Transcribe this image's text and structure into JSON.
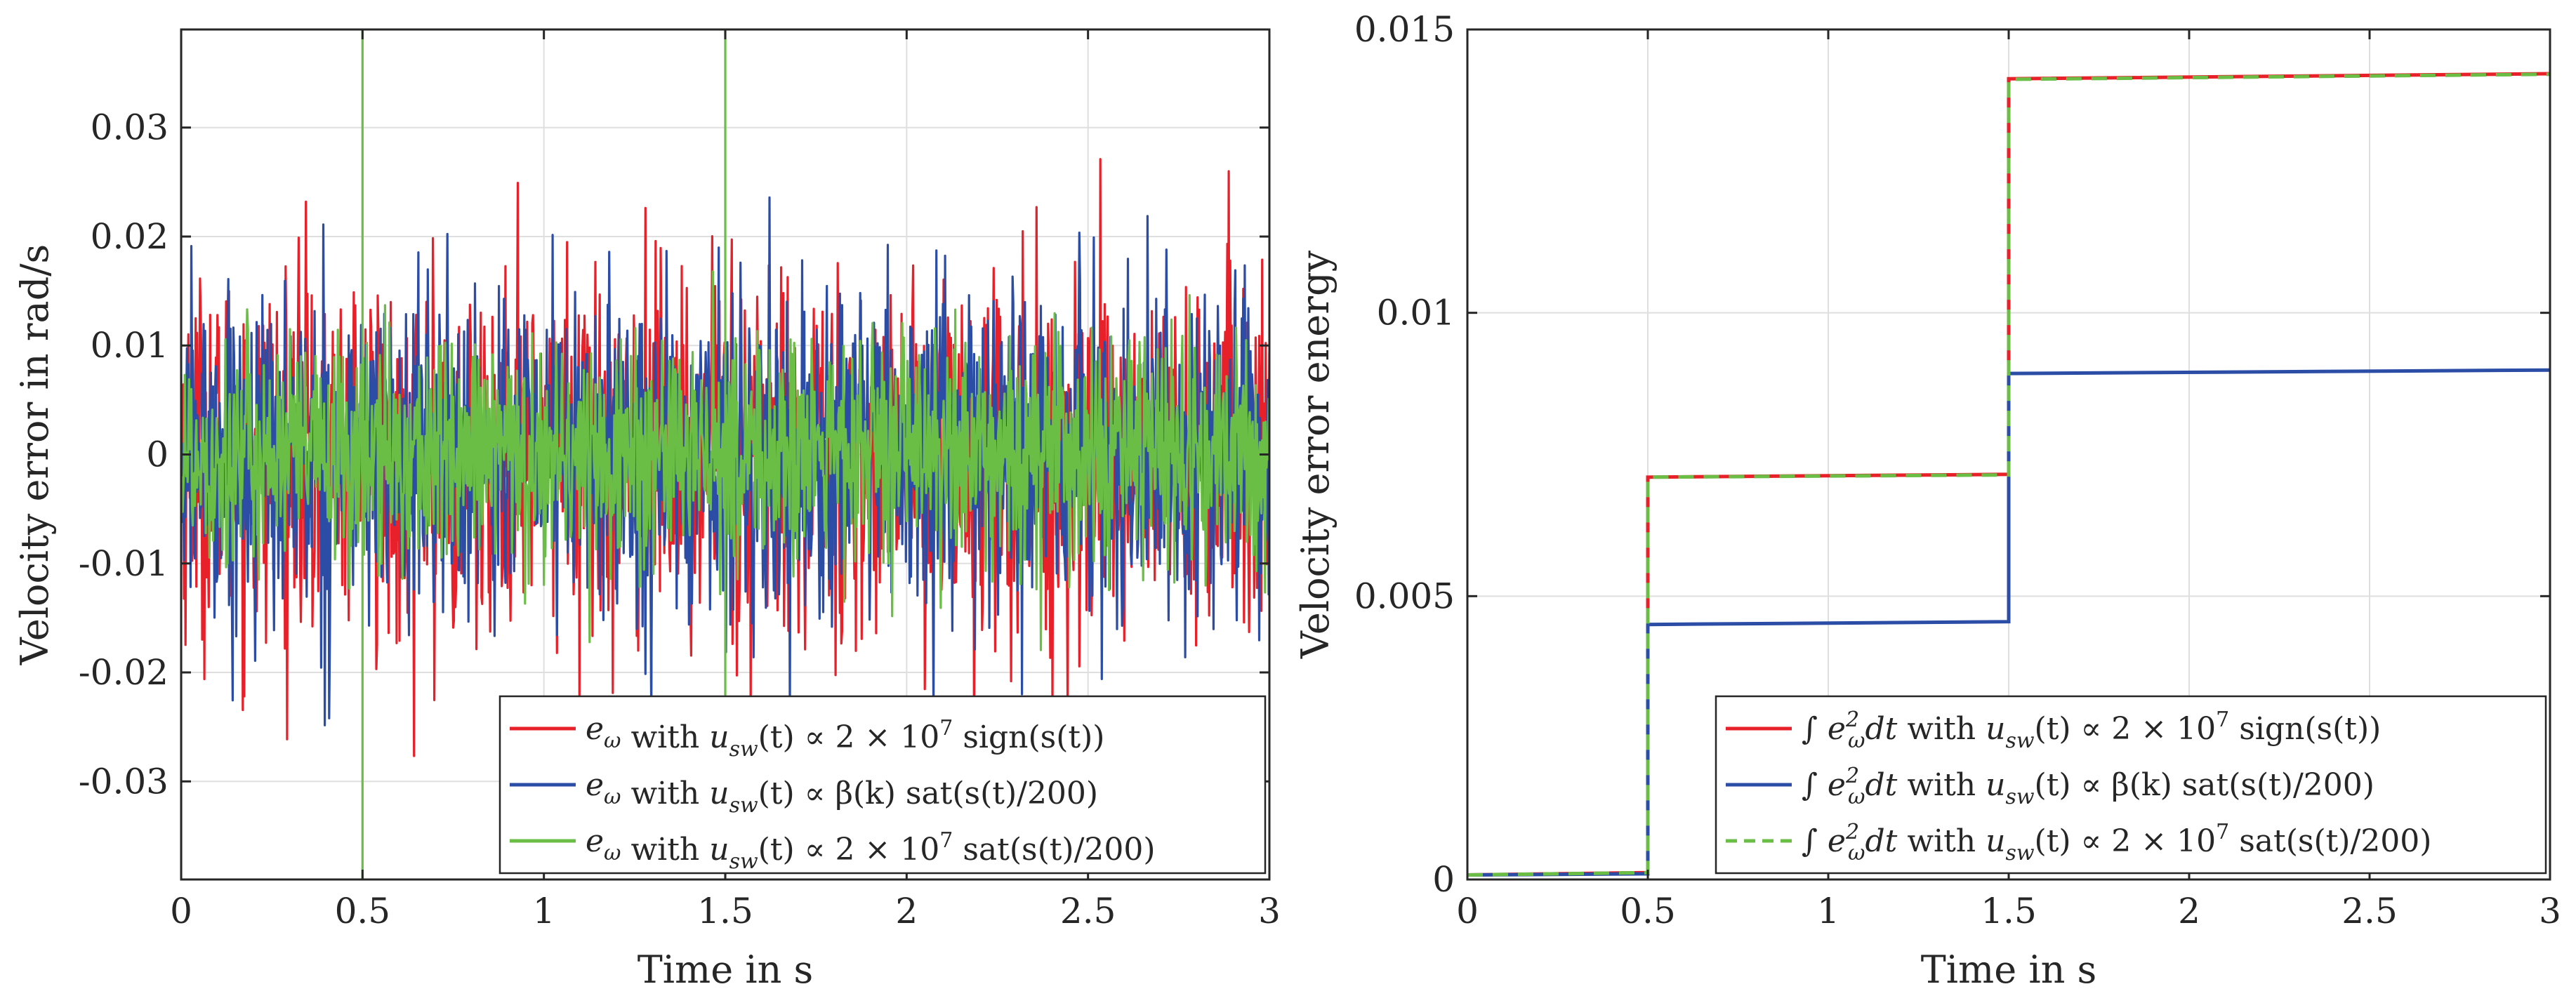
{
  "colors": {
    "red": "#e8202a",
    "blue": "#2b4da6",
    "green": "#6abe45",
    "axis": "#262626",
    "grid": "#dfdfdf"
  },
  "chart_data": [
    {
      "type": "line",
      "xlabel": "Time in s",
      "ylabel": "Velocity error in rad/s",
      "xlim": [
        0,
        3
      ],
      "ylim": [
        -0.039,
        0.039
      ],
      "grid": true,
      "x_ticks": [
        0,
        0.5,
        1,
        1.5,
        2,
        2.5,
        3
      ],
      "x_tick_labels": [
        "0",
        "0.5",
        "1",
        "1.5",
        "2",
        "2.5",
        "3"
      ],
      "y_ticks": [
        -0.03,
        -0.02,
        -0.01,
        0,
        0.01,
        0.02,
        0.03
      ],
      "y_tick_labels": [
        "-0.03",
        "-0.02",
        "-0.01",
        "0",
        "0.01",
        "0.02",
        "0.03"
      ],
      "legend_position": "bottom-right",
      "series": [
        {
          "name": "e_ω with u_sw(t) ∝ 2 × 10^7 sign(s(t))",
          "color": "#e8202a",
          "style": "solid",
          "description": "noise-like signal, amplitude about ±0.028 rad/s"
        },
        {
          "name": "e_ω with u_sw(t) ∝ β(k) sat(s(t)/200)",
          "color": "#2b4da6",
          "style": "solid",
          "description": "noise-like signal, amplitude about ±0.025 rad/s"
        },
        {
          "name": "e_ω with u_sw(t) ∝ 2 × 10^7 sat(s(t)/200)",
          "color": "#6abe45",
          "style": "solid",
          "description": "noise-like signal, amplitude about ±0.017 rad/s, spikes to ±0.039 at t = 0, 0.5, 1.5"
        }
      ],
      "legend": [
        {
          "sym": "e",
          "sub": "ω",
          "with": " with ",
          "u": "u",
          "usub": "sw",
          "mid": "(t) ∝ ",
          "rest": "2 × 10",
          "sup": "7",
          "end": " sign(s(t))"
        },
        {
          "sym": "e",
          "sub": "ω",
          "with": " with ",
          "u": "u",
          "usub": "sw",
          "mid": "(t) ∝ ",
          "rest": "β(k)",
          "sup": "",
          "end": " sat(s(t)/200)"
        },
        {
          "sym": "e",
          "sub": "ω",
          "with": " with ",
          "u": "u",
          "usub": "sw",
          "mid": "(t) ∝ ",
          "rest": "2 × 10",
          "sup": "7",
          "end": " sat(s(t)/200)"
        }
      ]
    },
    {
      "type": "line",
      "xlabel": "Time in s",
      "ylabel": "Velocity error energy",
      "xlim": [
        0,
        3
      ],
      "ylim": [
        0,
        0.015
      ],
      "grid": true,
      "x_ticks": [
        0,
        0.5,
        1,
        1.5,
        2,
        2.5,
        3
      ],
      "x_tick_labels": [
        "0",
        "0.5",
        "1",
        "1.5",
        "2",
        "2.5",
        "3"
      ],
      "y_ticks": [
        0,
        0.005,
        0.01,
        0.015
      ],
      "y_tick_labels": [
        "0",
        "0.005",
        "0.01",
        "0.015"
      ],
      "legend_position": "bottom-right",
      "series": [
        {
          "name": "∫ e_ω² dt with u_sw(t) ∝ 2 × 10^7 sign(s(t))",
          "color": "#e8202a",
          "style": "solid",
          "x": [
            0,
            0.5,
            0.5,
            1.5,
            1.5,
            3
          ],
          "y": [
            8e-05,
            0.00012,
            0.0071,
            0.00715,
            0.01413,
            0.01422
          ]
        },
        {
          "name": "∫ e_ω² dt with u_sw(t) ∝ β(k) sat(s(t)/200)",
          "color": "#2b4da6",
          "style": "solid",
          "x": [
            0,
            0.5,
            0.5,
            1.5,
            1.5,
            3
          ],
          "y": [
            8e-05,
            0.0001,
            0.0045,
            0.00455,
            0.00893,
            0.00899
          ]
        },
        {
          "name": "∫ e_ω² dt with u_sw(t) ∝ 2 × 10^7 sat(s(t)/200)",
          "color": "#6abe45",
          "style": "dashed",
          "x": [
            0,
            0.5,
            0.5,
            1.5,
            1.5,
            3
          ],
          "y": [
            8e-05,
            0.00012,
            0.0071,
            0.00714,
            0.01412,
            0.01421
          ]
        }
      ],
      "legend": [
        {
          "sym": "∫ e",
          "sub": "ω",
          "sup2": "2",
          "dt": "dt",
          "with": " with ",
          "u": "u",
          "usub": "sw",
          "mid": "(t) ∝ ",
          "rest": "2 × 10",
          "sup": "7",
          "end": " sign(s(t))"
        },
        {
          "sym": "∫ e",
          "sub": "ω",
          "sup2": "2",
          "dt": "dt",
          "with": " with ",
          "u": "u",
          "usub": "sw",
          "mid": "(t) ∝ ",
          "rest": "β(k)",
          "sup": "",
          "end": " sat(s(t)/200)"
        },
        {
          "sym": "∫ e",
          "sub": "ω",
          "sup2": "2",
          "dt": "dt",
          "with": " with ",
          "u": "u",
          "usub": "sw",
          "mid": "(t) ∝ ",
          "rest": "2 × 10",
          "sup": "7",
          "end": " sat(s(t)/200)"
        }
      ]
    }
  ]
}
